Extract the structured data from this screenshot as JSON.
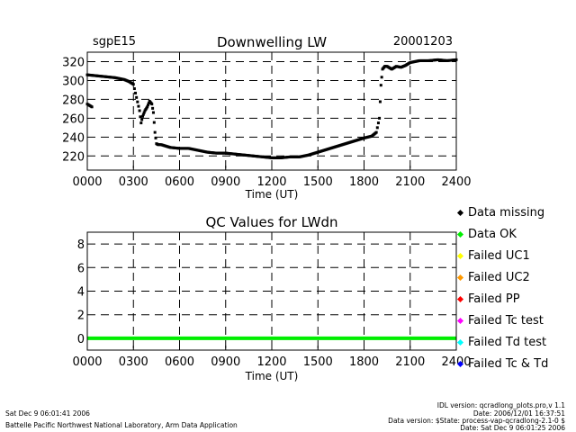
{
  "top": {
    "site": "sgpE15",
    "title": "Downwelling LW",
    "date": "20001203",
    "xlabel": "Time (UT)"
  },
  "bottom": {
    "title": "QC Values for LWdn",
    "xlabel": "Time (UT)"
  },
  "legend": [
    {
      "label": "Data missing",
      "color": "#000000"
    },
    {
      "label": "Data OK",
      "color": "#00ee00"
    },
    {
      "label": "Failed UC1",
      "color": "#ffff00"
    },
    {
      "label": "Failed UC2",
      "color": "#ff9900"
    },
    {
      "label": "Failed PP",
      "color": "#ff0000"
    },
    {
      "label": "Failed Tc test",
      "color": "#ff00ff"
    },
    {
      "label": "Failed Td test",
      "color": "#00ffff"
    },
    {
      "label": "Failed Tc & Td",
      "color": "#0000ff"
    }
  ],
  "footer": {
    "left_date": "Sat Dec  9 06:01:41 2006",
    "lab": "Battelle Pacific Northwest National Laboratory, Arm Data Application",
    "idl_version": "IDL version: qcradlong_plots.pro,v 1.1",
    "idl_date": "Date: 2006/12/01 16:37:51",
    "data_version": "Data version: $State: process-vap-qcradlong-2.1-0 $",
    "data_date": "Date: Sat Dec  9 06:01:25 2006"
  },
  "chart_data": [
    {
      "type": "scatter",
      "title": "Downwelling LW",
      "xlabel": "Time (UT)",
      "ylabel": "",
      "xlim": [
        0,
        2400
      ],
      "ylim": [
        205,
        330
      ],
      "x_ticks": [
        "0000",
        "0300",
        "0600",
        "0900",
        "1200",
        "1500",
        "1800",
        "2100",
        "2400"
      ],
      "y_ticks": [
        220,
        240,
        260,
        280,
        300,
        320
      ],
      "grid": true,
      "series": [
        {
          "color": "#000000",
          "x": [
            0,
            60,
            120,
            180,
            240,
            270,
            300,
            320,
            340,
            350,
            360,
            375,
            390,
            405,
            420,
            430,
            440,
            450,
            460,
            480,
            540,
            600,
            660,
            720,
            780,
            840,
            900,
            960,
            1020,
            1080,
            1140,
            1200,
            1260,
            1320,
            1380,
            1440,
            1500,
            1560,
            1620,
            1680,
            1740,
            1800,
            1850,
            1880,
            1900,
            1910,
            1920,
            1935,
            1950,
            1980,
            2010,
            2040,
            2070,
            2100,
            2160,
            2220,
            2280,
            2340,
            2400
          ],
          "y": [
            306,
            305,
            304,
            303,
            301,
            299,
            296,
            282,
            268,
            255,
            262,
            268,
            272,
            278,
            275,
            266,
            245,
            233,
            232,
            232,
            229,
            228,
            228,
            226,
            224,
            223,
            223,
            222,
            221,
            220,
            219,
            218,
            218,
            219,
            219,
            221,
            224,
            227,
            230,
            233,
            236,
            239,
            241,
            245,
            260,
            295,
            312,
            315,
            315,
            312,
            315,
            314,
            316,
            319,
            321,
            321,
            322,
            321,
            322
          ]
        },
        {
          "color": "#000000",
          "x": [
            0,
            30
          ],
          "y": [
            275,
            272
          ]
        }
      ]
    },
    {
      "type": "line",
      "title": "QC Values for LWdn",
      "xlabel": "Time (UT)",
      "ylabel": "",
      "xlim": [
        0,
        2400
      ],
      "ylim": [
        -1,
        9
      ],
      "x_ticks": [
        "0000",
        "0300",
        "0600",
        "0900",
        "1200",
        "1500",
        "1800",
        "2100",
        "2400"
      ],
      "y_ticks": [
        0,
        2,
        4,
        6,
        8
      ],
      "grid": true,
      "series": [
        {
          "color": "#00ee00",
          "x": [
            0,
            2400
          ],
          "y": [
            0,
            0
          ]
        }
      ]
    }
  ]
}
